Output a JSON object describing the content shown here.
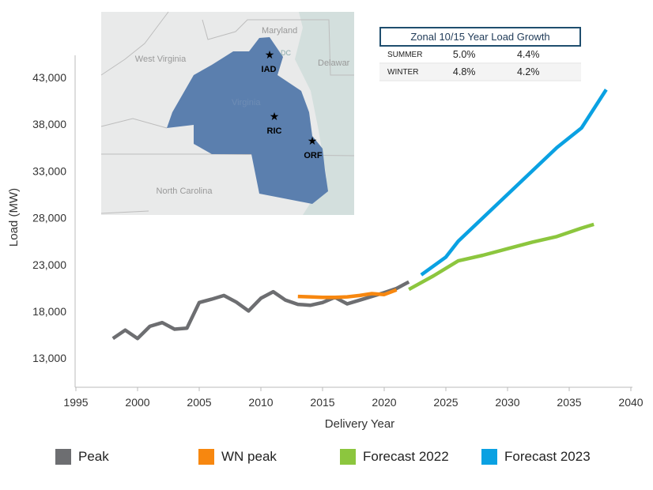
{
  "chart_data": {
    "type": "line",
    "xlabel": "Delivery Year",
    "ylabel": "Load (MW)",
    "xlim": [
      1995,
      2040
    ],
    "ylim": [
      10000,
      46000
    ],
    "x_ticks": [
      "1995",
      "2000",
      "2005",
      "2010",
      "2015",
      "2020",
      "2025",
      "2030",
      "2035",
      "2040"
    ],
    "y_ticks": [
      "13,000",
      "18,000",
      "23,000",
      "28,000",
      "33,000",
      "38,000",
      "43,000"
    ],
    "y_tick_values": [
      13000,
      18000,
      23000,
      28000,
      33000,
      38000,
      43000
    ],
    "grid": false,
    "legend_position": "bottom",
    "series": [
      {
        "name": "Peak",
        "color": "#6d6e71",
        "x": [
          1998,
          1999,
          2000,
          2001,
          2002,
          2003,
          2004,
          2005,
          2006,
          2007,
          2008,
          2009,
          2010,
          2011,
          2012,
          2013,
          2014,
          2015,
          2016,
          2017,
          2018,
          2019,
          2020,
          2021,
          2022
        ],
        "y": [
          15100,
          16000,
          15100,
          16400,
          16800,
          16100,
          16200,
          18950,
          19300,
          19700,
          19000,
          18050,
          19400,
          20100,
          19200,
          18750,
          18650,
          18950,
          19500,
          18800,
          19200,
          19600,
          20000,
          20450,
          21150
        ]
      },
      {
        "name": "WN peak",
        "color": "#f7870f",
        "x": [
          2013,
          2014,
          2015,
          2016,
          2017,
          2018,
          2019,
          2020,
          2021
        ],
        "y": [
          19600,
          19550,
          19500,
          19500,
          19550,
          19700,
          19900,
          19800,
          20300
        ]
      },
      {
        "name": "Forecast 2022",
        "color": "#8cc63e",
        "x": [
          2022,
          2024,
          2026,
          2028,
          2030,
          2032,
          2034,
          2036,
          2037
        ],
        "y": [
          20350,
          21800,
          23400,
          24000,
          24700,
          25400,
          26000,
          26900,
          27300
        ]
      },
      {
        "name": "Forecast 2023",
        "color": "#0aa1e2",
        "x": [
          2023,
          2025,
          2026,
          2028,
          2030,
          2032,
          2034,
          2036,
          2038
        ],
        "y": [
          21900,
          23800,
          25500,
          28000,
          30500,
          33000,
          35500,
          37600,
          41700
        ]
      }
    ]
  },
  "map": {
    "labels": {
      "maryland": "Maryland",
      "west_virginia": "West Virginia",
      "delaware": "Delawar",
      "virginia": "Virginia",
      "dc": "DC",
      "north_carolina": "North Carolina"
    },
    "cities": [
      {
        "code": "IAD"
      },
      {
        "code": "RIC"
      },
      {
        "code": "ORF"
      }
    ],
    "zone_color": "#5b7fae"
  },
  "growth_table": {
    "title": "Zonal 10/15 Year Load Growth",
    "rows": [
      {
        "season": "SUMMER",
        "ten_year": "5.0%",
        "fifteen_year": "4.4%"
      },
      {
        "season": "WINTER",
        "ten_year": "4.8%",
        "fifteen_year": "4.2%"
      }
    ]
  }
}
